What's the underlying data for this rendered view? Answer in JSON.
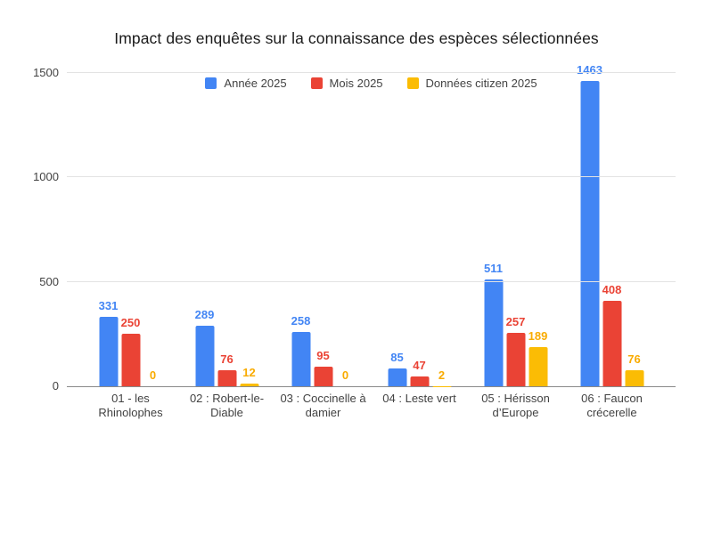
{
  "chart_data": {
    "type": "bar",
    "title": "Impact des enquêtes sur la connaissance des espèces sélectionnées",
    "categories": [
      "01 - les Rhinolophes",
      "02 : Robert-le-Diable",
      "03 : Coccinelle à damier",
      "04 : Leste vert",
      "05 : Hérisson d’Europe",
      "06 : Faucon crécerelle"
    ],
    "series": [
      {
        "name": "Année 2025",
        "color": "#4285F4",
        "label_color": "#4285F4",
        "values": [
          331,
          289,
          258,
          85,
          511,
          1463
        ]
      },
      {
        "name": "Mois 2025",
        "color": "#EA4335",
        "label_color": "#EA4335",
        "values": [
          250,
          76,
          95,
          47,
          257,
          408
        ]
      },
      {
        "name": "Données citizen 2025",
        "color": "#FBBC04",
        "label_color": "#F9AB00",
        "values": [
          0,
          12,
          0,
          2,
          189,
          76
        ]
      }
    ],
    "xlabel": "",
    "ylabel": "",
    "yticks": [
      0,
      500,
      1000,
      1500
    ],
    "ylim": [
      0,
      1500
    ],
    "grid": true,
    "legend_position": "top",
    "value_labels_shown": true
  },
  "colors": {
    "background": "#ffffff",
    "gridline": "#e3e3e3",
    "axis_line": "#8a8a8a",
    "axis_text": "#424242",
    "title_text": "#1a1a1a"
  }
}
